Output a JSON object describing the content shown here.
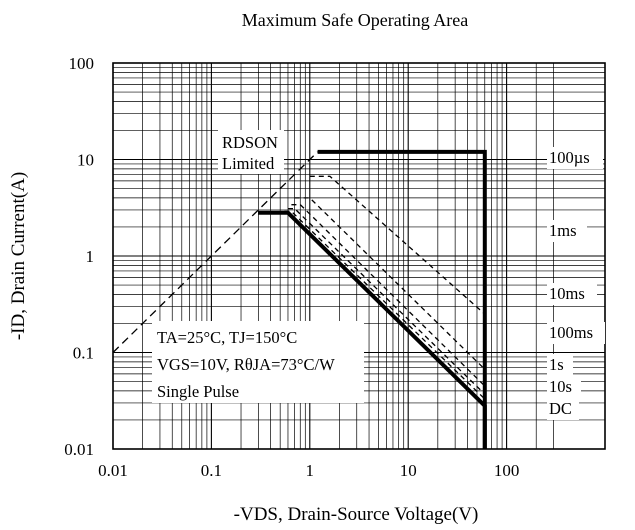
{
  "chart_data": {
    "type": "line",
    "title": "Maximum Safe Operating Area",
    "xlabel": "-VDS, Drain-Source Voltage(V)",
    "ylabel": "-ID, Drain Current(A)",
    "xscale": "log",
    "yscale": "log",
    "xlim": [
      0.01,
      300
    ],
    "ylim": [
      0.01,
      100
    ],
    "grid": true,
    "x_tick_labels": [
      "0.01",
      "0.1",
      "1",
      "10",
      "100"
    ],
    "y_tick_labels": [
      "0.01",
      "0.1",
      "1",
      "10",
      "100"
    ],
    "series": [
      {
        "name": "RDSON Limited",
        "style": "dashed",
        "x": [
          0.01,
          0.5,
          1.2
        ],
        "y": [
          0.1,
          5.0,
          12
        ]
      },
      {
        "name": "100µs",
        "style": "solid-bold",
        "x": [
          1.2,
          60,
          60
        ],
        "y": [
          12,
          12,
          0.01
        ]
      },
      {
        "name": "1ms",
        "style": "dashed",
        "x": [
          1.0,
          1.6,
          60
        ],
        "y": [
          6.7,
          6.7,
          0.25
        ]
      },
      {
        "name": "10ms",
        "style": "dashed",
        "x": [
          0.7,
          1.0,
          60
        ],
        "y": [
          4.0,
          4.0,
          0.067
        ]
      },
      {
        "name": "100ms",
        "style": "dashed",
        "x": [
          0.65,
          0.8,
          60
        ],
        "y": [
          3.4,
          3.4,
          0.045
        ]
      },
      {
        "name": "1s",
        "style": "dashed",
        "x": [
          0.6,
          0.7,
          60
        ],
        "y": [
          3.1,
          3.1,
          0.037
        ]
      },
      {
        "name": "10s",
        "style": "dashed",
        "x": [
          0.55,
          0.65,
          60
        ],
        "y": [
          2.9,
          2.9,
          0.033
        ]
      },
      {
        "name": "DC",
        "style": "solid-bold",
        "x": [
          0.3,
          0.6,
          60,
          60
        ],
        "y": [
          2.8,
          2.8,
          0.028,
          0.01
        ]
      }
    ],
    "annotations": {
      "rdson": [
        "RDSON",
        "Limited"
      ],
      "conditions": [
        "TA=25°C, TJ=150°C",
        "VGS=10V, RθJA=73°C/W",
        "Single Pulse"
      ],
      "curve_labels": [
        "100µs",
        "1ms",
        "10ms",
        "100ms",
        "1s",
        "10s",
        "DC"
      ]
    }
  }
}
